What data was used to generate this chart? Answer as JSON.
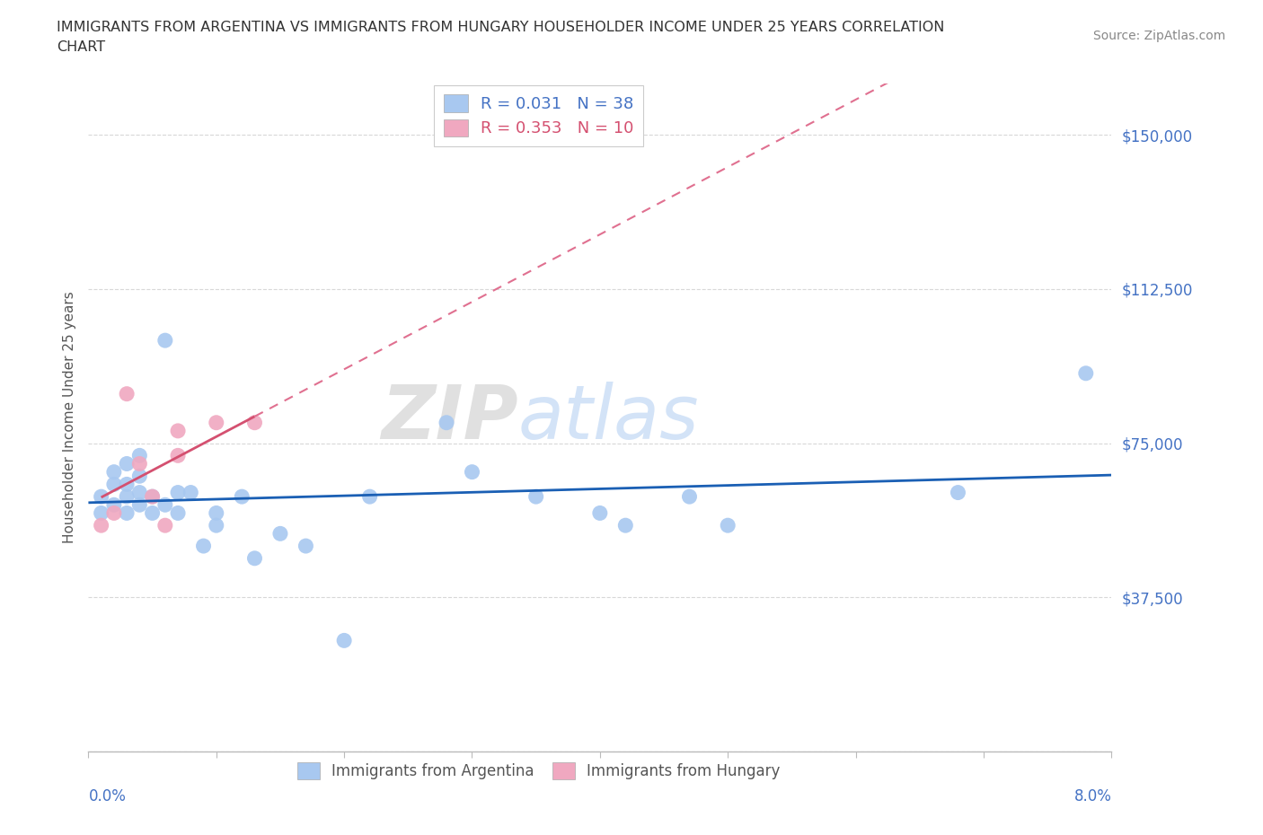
{
  "title_line1": "IMMIGRANTS FROM ARGENTINA VS IMMIGRANTS FROM HUNGARY HOUSEHOLDER INCOME UNDER 25 YEARS CORRELATION",
  "title_line2": "CHART",
  "source": "Source: ZipAtlas.com",
  "ylabel": "Householder Income Under 25 years",
  "yticks": [
    0,
    37500,
    75000,
    112500,
    150000
  ],
  "xlim": [
    0.0,
    0.08
  ],
  "ylim": [
    0,
    162500
  ],
  "argentina_color": "#a8c8f0",
  "hungary_color": "#f0a8c0",
  "argentina_line_color": "#1a5fb4",
  "hungary_line_color": "#d45070",
  "hungary_line_color_dash": "#e07090",
  "grid_color": "#d8d8d8",
  "arg_r": 0.031,
  "arg_n": 38,
  "hun_r": 0.353,
  "hun_n": 10,
  "argentina_x": [
    0.001,
    0.001,
    0.002,
    0.002,
    0.002,
    0.003,
    0.003,
    0.003,
    0.003,
    0.004,
    0.004,
    0.004,
    0.004,
    0.005,
    0.005,
    0.006,
    0.006,
    0.007,
    0.007,
    0.008,
    0.009,
    0.01,
    0.01,
    0.012,
    0.013,
    0.015,
    0.017,
    0.02,
    0.022,
    0.028,
    0.03,
    0.035,
    0.04,
    0.042,
    0.047,
    0.05,
    0.068,
    0.078
  ],
  "argentina_y": [
    62000,
    58000,
    65000,
    60000,
    68000,
    62000,
    58000,
    65000,
    70000,
    63000,
    60000,
    67000,
    72000,
    58000,
    62000,
    100000,
    60000,
    63000,
    58000,
    63000,
    50000,
    58000,
    55000,
    62000,
    47000,
    53000,
    50000,
    27000,
    62000,
    80000,
    68000,
    62000,
    58000,
    55000,
    62000,
    55000,
    63000,
    92000
  ],
  "hungary_x": [
    0.001,
    0.002,
    0.003,
    0.004,
    0.005,
    0.006,
    0.007,
    0.007,
    0.01,
    0.013
  ],
  "hungary_y": [
    55000,
    58000,
    87000,
    70000,
    62000,
    55000,
    72000,
    78000,
    80000,
    80000
  ]
}
